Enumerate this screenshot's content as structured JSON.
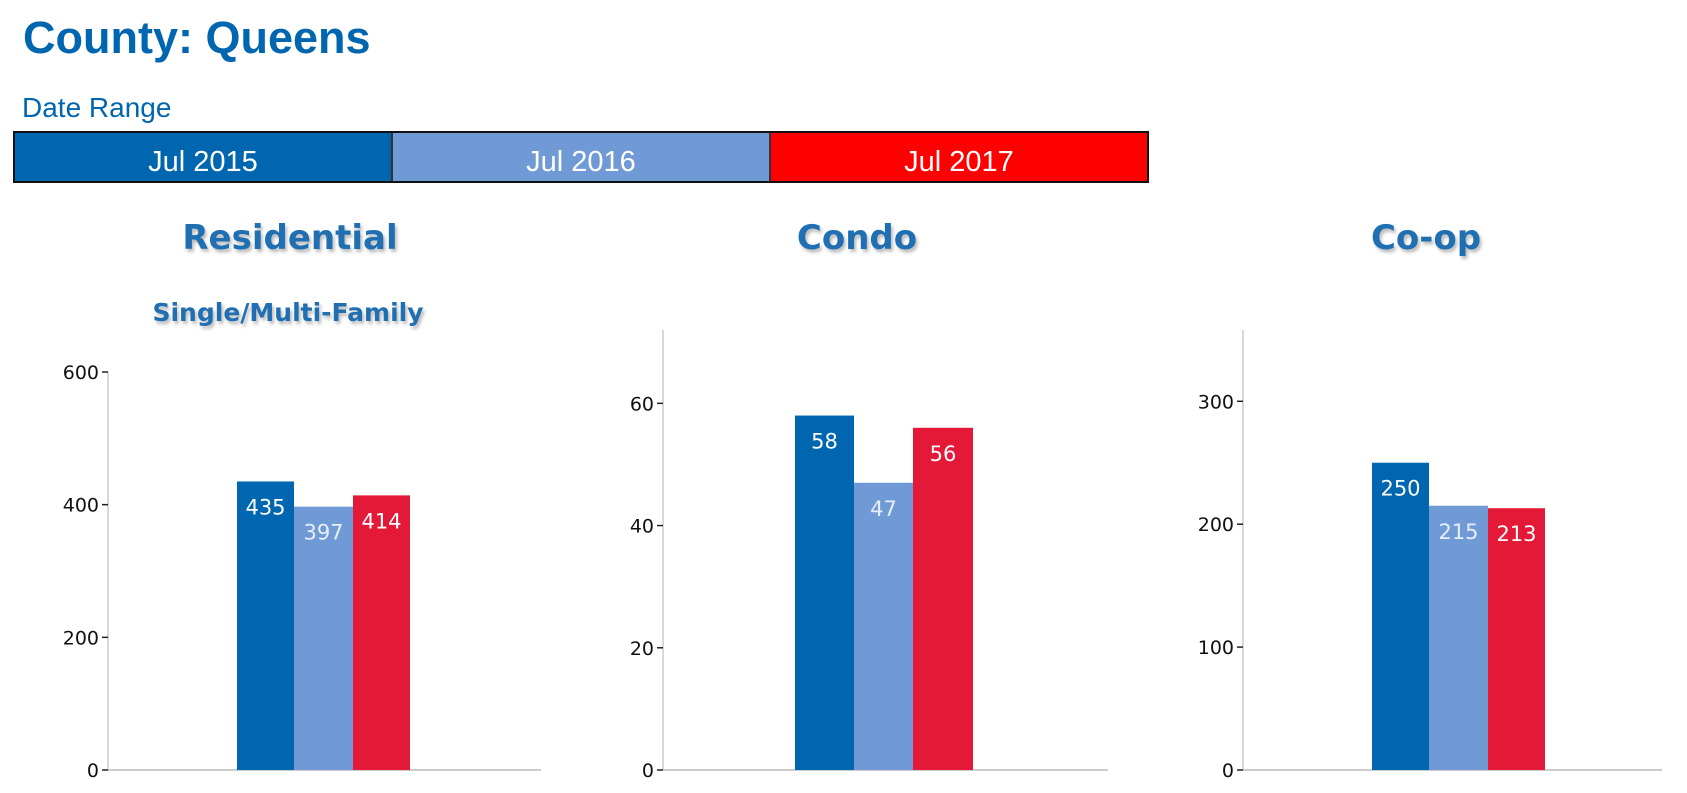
{
  "header": {
    "title": "County: Queens",
    "date_range_label": "Date Range"
  },
  "date_range": [
    {
      "label": "Jul 2015",
      "color": "#0066b0"
    },
    {
      "label": "Jul 2016",
      "color": "#6f9ad5"
    },
    {
      "label": "Jul 2017",
      "color": "#ff0000"
    }
  ],
  "chart_data": [
    {
      "type": "bar",
      "title": "Residential",
      "subtitle": "Single/Multi-Family",
      "categories": [
        "Jul 2015",
        "Jul 2016",
        "Jul 2017"
      ],
      "values": [
        435,
        397,
        414
      ],
      "colors": [
        "#0066b0",
        "#6f9ad5",
        "#e31937"
      ],
      "ylim": [
        0,
        600
      ],
      "yticks": [
        0,
        200,
        400,
        600
      ],
      "grid": false
    },
    {
      "type": "bar",
      "title": "Condo",
      "subtitle": "",
      "categories": [
        "Jul 2015",
        "Jul 2016",
        "Jul 2017"
      ],
      "values": [
        58,
        47,
        56
      ],
      "colors": [
        "#0066b0",
        "#6f9ad5",
        "#e31937"
      ],
      "ylim": [
        0,
        72
      ],
      "yticks": [
        0,
        20,
        40,
        60
      ],
      "grid": false
    },
    {
      "type": "bar",
      "title": "Co-op",
      "subtitle": "",
      "categories": [
        "Jul 2015",
        "Jul 2016",
        "Jul 2017"
      ],
      "values": [
        250,
        215,
        213
      ],
      "colors": [
        "#0066b0",
        "#6f9ad5",
        "#e31937"
      ],
      "ylim": [
        0,
        358
      ],
      "yticks": [
        0,
        100,
        200,
        300
      ],
      "grid": false
    }
  ]
}
